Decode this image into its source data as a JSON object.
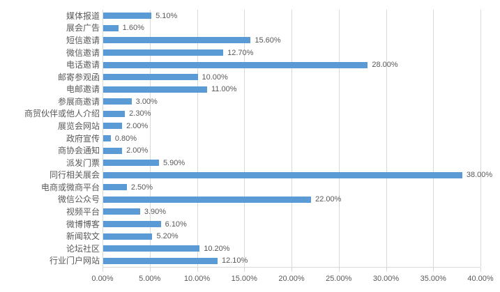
{
  "chart_data": {
    "type": "bar",
    "orientation": "horizontal",
    "title": "",
    "categories": [
      "媒体报道",
      "展会广告",
      "短信邀请",
      "微信邀请",
      "电话邀请",
      "邮寄参观函",
      "电邮邀请",
      "参展商邀请",
      "商贸伙伴或他人介绍",
      "展览会网站",
      "政府宣传",
      "商协会通知",
      "派发门票",
      "同行相关展会",
      "电商或微商平台",
      "微信公众号",
      "视频平台",
      "微博博客",
      "新闻软文",
      "论坛社区",
      "行业门户网站"
    ],
    "values": [
      5.1,
      1.6,
      15.6,
      12.7,
      28.0,
      10.0,
      11.0,
      3.0,
      2.3,
      2.0,
      0.8,
      2.0,
      5.9,
      38.0,
      2.5,
      22.0,
      3.9,
      6.1,
      5.2,
      10.2,
      12.1
    ],
    "value_labels": [
      "5.10%",
      "1.60%",
      "15.60%",
      "12.70%",
      "28.00%",
      "10.00%",
      "11.00%",
      "3.00%",
      "2.30%",
      "2.00%",
      "0.80%",
      "2.00%",
      "5.90%",
      "38.00%",
      "2.50%",
      "22.00%",
      "3.90%",
      "6.10%",
      "5.20%",
      "10.20%",
      "12.10%"
    ],
    "x_ticks": [
      "0.00%",
      "5.00%",
      "10.00%",
      "15.00%",
      "20.00%",
      "25.00%",
      "30.00%",
      "35.00%",
      "40.00%"
    ],
    "xlabel": "",
    "ylabel": "",
    "xlim": [
      0,
      40
    ],
    "grid": true,
    "legend_position": "none",
    "bar_color": "#5B9BD5",
    "gridline_color": "#D9D9D9",
    "text_color": "#595959"
  }
}
